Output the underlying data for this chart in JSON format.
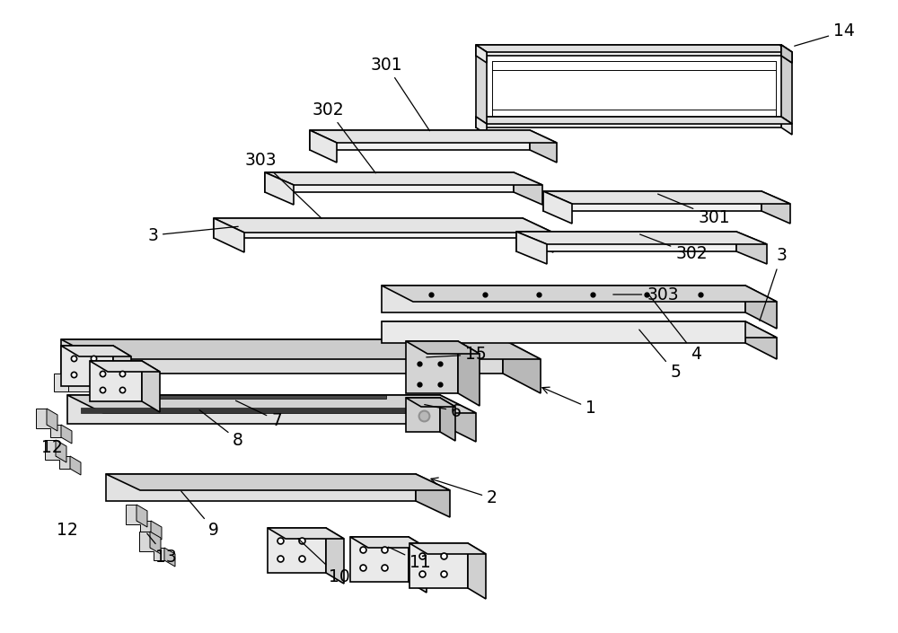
{
  "bg_color": "#ffffff",
  "line_color": "#000000",
  "fill_light": "#f0f0f0",
  "fill_mid": "#e0e0e0",
  "fill_dark": "#c8c8c8",
  "fill_darker": "#b0b0b0",
  "fs": 13.5
}
